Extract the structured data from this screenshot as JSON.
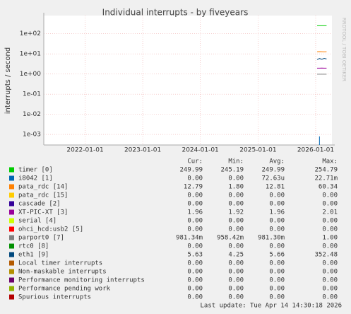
{
  "chart_data": {
    "type": "line",
    "title": "Individual interrupts - by fiveyears",
    "y_label": "interrupts / second",
    "watermark": "RRDTOOL / TOBI OETIKER",
    "log_scale": true,
    "grid": true,
    "x": [
      "2026-01-10",
      "2026-01-25",
      "2026-02-09",
      "2026-02-24",
      "2026-03-11"
    ],
    "xlim": [
      "2021-04-14",
      "2026-04-14"
    ],
    "xticks": [
      "2022-01-01",
      "2023-01-01",
      "2024-01-01",
      "2025-01-01",
      "2026-01-01"
    ],
    "ylim": [
      0.0003,
      800
    ],
    "yticks": [
      {
        "value": 100,
        "label": "1e+02"
      },
      {
        "value": 10,
        "label": "1e+01"
      },
      {
        "value": 1,
        "label": "1e+00"
      },
      {
        "value": 0.1,
        "label": "1e-01"
      },
      {
        "value": 0.01,
        "label": "1e-02"
      },
      {
        "value": 0.001,
        "label": "1e-03"
      }
    ],
    "stats_columns": [
      "Cur:",
      "Min:",
      "Avg:",
      "Max:"
    ],
    "series": [
      {
        "name": "timer [0]",
        "color": "#00cc00",
        "values": [
          250,
          249,
          251,
          250,
          250
        ],
        "stats": [
          "249.99",
          "245.19",
          "249.99",
          "254.79"
        ]
      },
      {
        "name": "i8042 [1]",
        "color": "#0066b3",
        "values": [
          null,
          0.0008,
          null,
          null,
          null
        ],
        "stats": [
          "0.00",
          "0.00",
          "72.63u",
          "22.71m"
        ]
      },
      {
        "name": "pata_rdc [14]",
        "color": "#ff8000",
        "values": [
          12.8,
          12.9,
          12.8,
          12.7,
          12.8
        ],
        "stats": [
          "12.79",
          "1.80",
          "12.81",
          "60.34"
        ]
      },
      {
        "name": "pata_rdc [15]",
        "color": "#ffcc00",
        "values": [
          null,
          null,
          null,
          null,
          null
        ],
        "stats": [
          "0.00",
          "0.00",
          "0.00",
          "0.00"
        ]
      },
      {
        "name": "cascade [2]",
        "color": "#330099",
        "values": [
          null,
          null,
          null,
          null,
          null
        ],
        "stats": [
          "0.00",
          "0.00",
          "0.00",
          "0.00"
        ]
      },
      {
        "name": "XT-PIC-XT [3]",
        "color": "#990099",
        "values": [
          1.96,
          1.95,
          1.97,
          1.96,
          1.96
        ],
        "stats": [
          "1.96",
          "1.92",
          "1.96",
          "2.01"
        ]
      },
      {
        "name": "serial [4]",
        "color": "#ccff00",
        "values": [
          null,
          null,
          null,
          null,
          null
        ],
        "stats": [
          "0.00",
          "0.00",
          "0.00",
          "0.00"
        ]
      },
      {
        "name": "ohci_hcd:usb2 [5]",
        "color": "#ff0000",
        "values": [
          null,
          null,
          null,
          null,
          null
        ],
        "stats": [
          "0.00",
          "0.00",
          "0.00",
          "0.00"
        ]
      },
      {
        "name": "parport0 [7]",
        "color": "#808080",
        "values": [
          0.98,
          0.98,
          0.98,
          0.98,
          0.98
        ],
        "stats": [
          "981.34m",
          "958.42m",
          "981.30m",
          "1.00"
        ]
      },
      {
        "name": "rtc0 [8]",
        "color": "#008f00",
        "values": [
          null,
          null,
          null,
          null,
          null
        ],
        "stats": [
          "0.00",
          "0.00",
          "0.00",
          "0.00"
        ]
      },
      {
        "name": "eth1 [9]",
        "color": "#00487d",
        "values": [
          5.2,
          5.9,
          5.4,
          6.0,
          5.6
        ],
        "stats": [
          "5.63",
          "4.25",
          "5.66",
          "352.48"
        ]
      },
      {
        "name": "Local timer interrupts",
        "color": "#b35a00",
        "values": [
          null,
          null,
          null,
          null,
          null
        ],
        "stats": [
          "0.00",
          "0.00",
          "0.00",
          "0.00"
        ]
      },
      {
        "name": "Non-maskable interrupts",
        "color": "#b38f00",
        "values": [
          null,
          null,
          null,
          null,
          null
        ],
        "stats": [
          "0.00",
          "0.00",
          "0.00",
          "0.00"
        ]
      },
      {
        "name": "Performance monitoring interrupts",
        "color": "#6b006b",
        "values": [
          null,
          null,
          null,
          null,
          null
        ],
        "stats": [
          "0.00",
          "0.00",
          "0.00",
          "0.00"
        ]
      },
      {
        "name": "Performance pending work",
        "color": "#8fb300",
        "values": [
          null,
          null,
          null,
          null,
          null
        ],
        "stats": [
          "0.00",
          "0.00",
          "0.00",
          "0.00"
        ]
      },
      {
        "name": "Spurious interrupts",
        "color": "#b30000",
        "values": [
          null,
          null,
          null,
          null,
          null
        ],
        "stats": [
          "0.00",
          "0.00",
          "0.00",
          "0.00"
        ]
      }
    ],
    "footer": "Last update: Tue Apr 14 14:30:18 2026"
  }
}
